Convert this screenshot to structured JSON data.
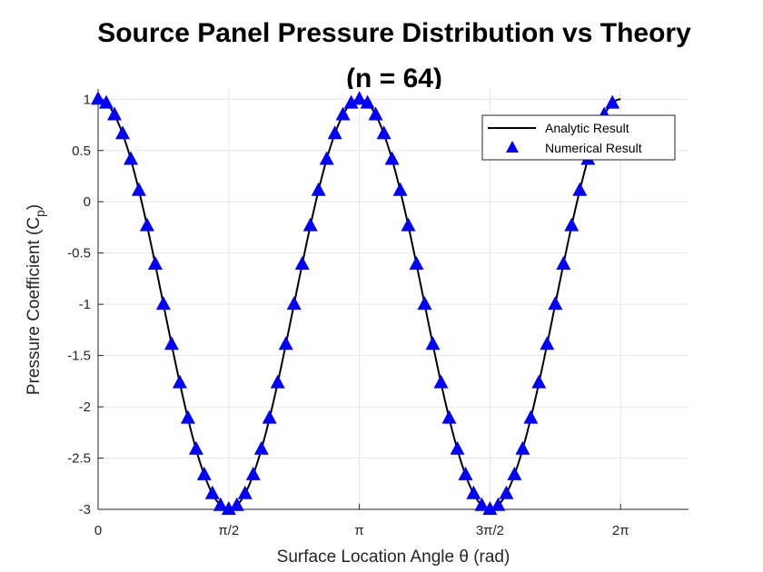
{
  "chart_data": {
    "type": "line",
    "title_line1": "Source Panel Pressure Distribution vs Theory",
    "title_line2": "(n = 64)",
    "xlabel": "Surface Location Angle θ (rad)",
    "ylabel_main": "Pressure Coefficient (C",
    "ylabel_sub": "p",
    "ylabel_end": ")",
    "xlim": [
      0,
      7.1
    ],
    "ylim": [
      -3,
      1.1
    ],
    "x_ticks": [
      {
        "value": 0,
        "label": "0"
      },
      {
        "value": 1.5708,
        "label": "π/2"
      },
      {
        "value": 3.1416,
        "label": "π"
      },
      {
        "value": 4.7124,
        "label": "3π/2"
      },
      {
        "value": 6.2832,
        "label": "2π"
      }
    ],
    "y_ticks": [
      {
        "value": 1,
        "label": "1"
      },
      {
        "value": 0.5,
        "label": "0.5"
      },
      {
        "value": 0,
        "label": "0"
      },
      {
        "value": -0.5,
        "label": "-0.5"
      },
      {
        "value": -1,
        "label": "-1"
      },
      {
        "value": -1.5,
        "label": "-1.5"
      },
      {
        "value": -2,
        "label": "-2"
      },
      {
        "value": -2.5,
        "label": "-2.5"
      },
      {
        "value": -3,
        "label": "-3"
      }
    ],
    "grid": true,
    "legend_position": "top-right",
    "series": [
      {
        "name": "Analytic Result",
        "kind": "line",
        "color": "#000000",
        "function": "Cp = 1 - 4 sin^2(theta)",
        "x_range": [
          0,
          6.2832
        ]
      },
      {
        "name": "Numerical Result",
        "kind": "markers",
        "marker": "triangle",
        "color": "#0000ff",
        "x_values": [
          0.0,
          0.0982,
          0.1963,
          0.2945,
          0.3927,
          0.4909,
          0.589,
          0.6872,
          0.7854,
          0.8836,
          0.9817,
          1.0799,
          1.1781,
          1.2763,
          1.3744,
          1.4726,
          1.5708,
          1.669,
          1.7671,
          1.8653,
          1.9635,
          2.0617,
          2.1598,
          2.258,
          2.3562,
          2.4544,
          2.5525,
          2.6507,
          2.7489,
          2.8471,
          2.9452,
          3.0434,
          3.1416,
          3.2398,
          3.3379,
          3.4361,
          3.5343,
          3.6325,
          3.7306,
          3.8288,
          3.927,
          4.0252,
          4.1233,
          4.2215,
          4.3197,
          4.4179,
          4.516,
          4.6142,
          4.7124,
          4.8106,
          4.9087,
          5.0069,
          5.1051,
          5.2033,
          5.3014,
          5.3996,
          5.4978,
          5.596,
          5.6941,
          5.7923,
          5.8905,
          5.9887,
          6.0868,
          6.185
        ],
        "y_values": [
          1.0,
          0.962,
          0.848,
          0.663,
          0.414,
          0.111,
          -0.234,
          -0.609,
          -1.0,
          -1.391,
          -1.766,
          -2.111,
          -2.414,
          -2.663,
          -2.848,
          -2.962,
          -3.0,
          -2.962,
          -2.848,
          -2.663,
          -2.414,
          -2.111,
          -1.766,
          -1.391,
          -1.0,
          -0.609,
          -0.234,
          0.111,
          0.414,
          0.663,
          0.848,
          0.962,
          1.0,
          0.962,
          0.848,
          0.663,
          0.414,
          0.111,
          -0.234,
          -0.609,
          -1.0,
          -1.391,
          -1.766,
          -2.111,
          -2.414,
          -2.663,
          -2.848,
          -2.962,
          -3.0,
          -2.962,
          -2.848,
          -2.663,
          -2.414,
          -2.111,
          -1.766,
          -1.391,
          -1.0,
          -0.609,
          -0.234,
          0.111,
          0.414,
          0.663,
          0.848,
          0.962
        ]
      }
    ]
  }
}
